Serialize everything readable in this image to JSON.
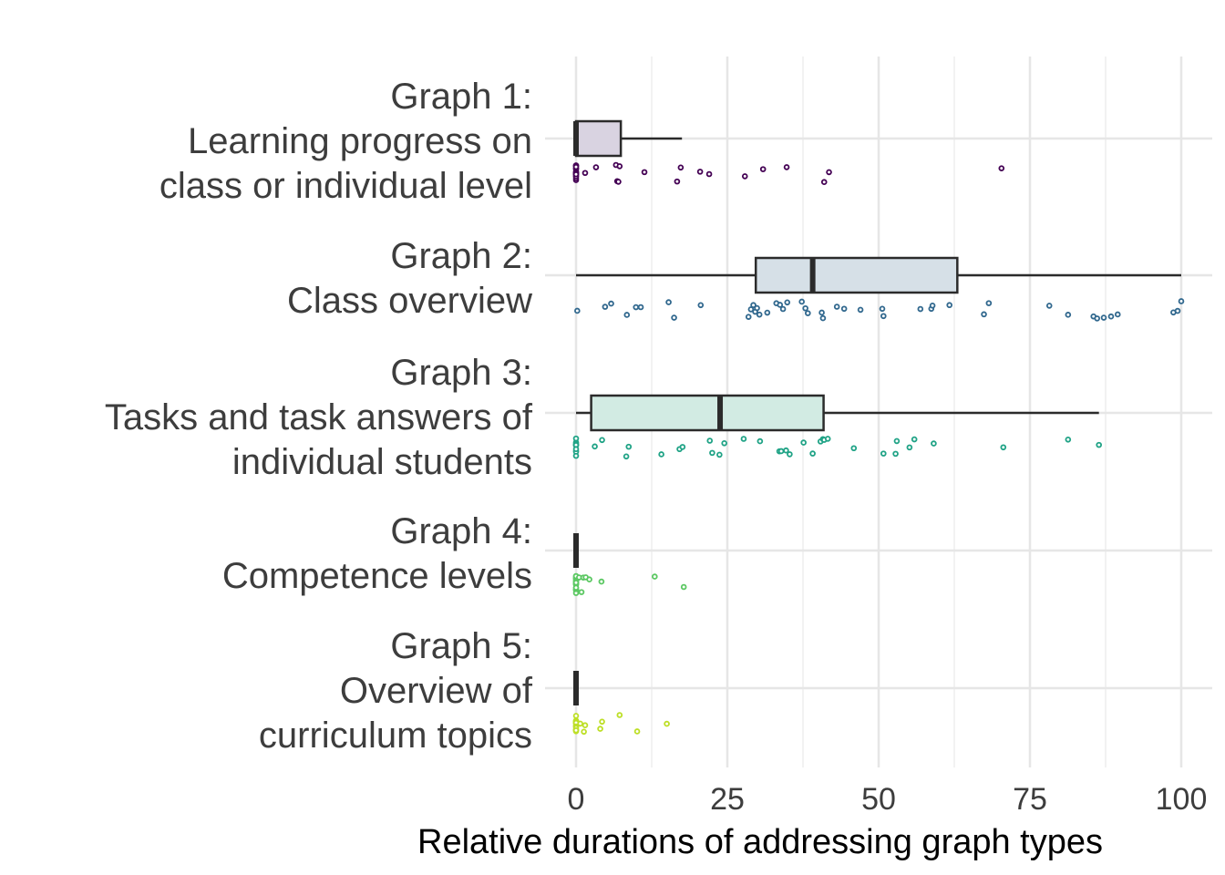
{
  "chart_data": {
    "type": "boxplot",
    "xlabel": "Relative durations of addressing graph types",
    "ylabel": "",
    "xlim": [
      0,
      100
    ],
    "xticks": [
      0,
      25,
      50,
      75,
      100
    ],
    "grid": true,
    "legend": "none",
    "categories": [
      {
        "label_lines": [
          "Graph 1:",
          "Learning progress on",
          "class or individual level"
        ],
        "color": "#440154",
        "fill": "#d9d3e1",
        "box": {
          "min": 0,
          "q1": 0,
          "median": 0,
          "q3": 7.4,
          "max": 17.5
        },
        "points": [
          0,
          0,
          0,
          0,
          0,
          0,
          0,
          0,
          0,
          0,
          0,
          0,
          0,
          0,
          0,
          0,
          0,
          0,
          0,
          1.5,
          3.3,
          6.6,
          6.8,
          7.0,
          7.2,
          11.3,
          16.7,
          17.3,
          20.5,
          22.0,
          27.9,
          30.9,
          34.8,
          41.0,
          41.8,
          70.3
        ]
      },
      {
        "label_lines": [
          "Graph 2:",
          "Class overview"
        ],
        "color": "#31688e",
        "fill": "#d6e0e7",
        "box": {
          "min": 0,
          "q1": 29.7,
          "median": 39.1,
          "q3": 63.0,
          "max": 100
        },
        "points": [
          0.2,
          4.8,
          5.8,
          8.4,
          9.9,
          10.7,
          15.3,
          16.2,
          20.6,
          28.5,
          28.9,
          29.3,
          29.6,
          29.9,
          30.3,
          31.6,
          33.1,
          33.7,
          34.2,
          34.9,
          37.3,
          37.9,
          38.3,
          40.6,
          40.8,
          43.1,
          44.3,
          47.0,
          50.6,
          50.8,
          56.9,
          58.7,
          58.9,
          61.7,
          67.4,
          68.2,
          78.2,
          81.3,
          85.5,
          86.1,
          87.2,
          88.4,
          89.5,
          98.7,
          99.4,
          100
        ]
      },
      {
        "label_lines": [
          "Graph 3:",
          "Tasks and task answers of",
          "individual students"
        ],
        "color": "#20a386",
        "fill": "#d2ebe3",
        "box": {
          "min": 0,
          "q1": 2.5,
          "median": 23.8,
          "q3": 40.9,
          "max": 86.4
        },
        "points": [
          0,
          0,
          0,
          0,
          0,
          0,
          0,
          0,
          0,
          0,
          0,
          3.1,
          4.3,
          8.3,
          8.7,
          14.1,
          17.1,
          17.6,
          22.1,
          22.5,
          23.7,
          24.5,
          27.7,
          30.4,
          33.6,
          33.9,
          34.7,
          35.3,
          37.6,
          39.1,
          40.4,
          40.8,
          41.0,
          41.6,
          45.9,
          50.8,
          52.8,
          53.0,
          55.1,
          55.9,
          59.1,
          70.6,
          81.3,
          86.4
        ]
      },
      {
        "label_lines": [
          "Graph 4:",
          "Competence levels"
        ],
        "color": "#5cc863",
        "fill": "#dff2dc",
        "box": {
          "min": 0,
          "q1": 0,
          "median": 0,
          "q3": 0,
          "max": 0
        },
        "points": [
          0,
          0,
          0,
          0,
          0,
          0,
          0,
          0,
          0,
          0,
          0,
          0,
          0,
          0,
          0,
          0,
          0,
          0,
          0,
          0,
          0,
          0,
          0.5,
          0.9,
          1.2,
          1.6,
          2.2,
          4.2,
          13.0,
          17.8
        ]
      },
      {
        "label_lines": [
          "Graph 5:",
          "Overview of",
          "curriculum topics"
        ],
        "color": "#bddf26",
        "fill": "#f2f8d4",
        "box": {
          "min": 0,
          "q1": 0,
          "median": 0,
          "q3": 0,
          "max": 0
        },
        "points": [
          0,
          0,
          0,
          0,
          0,
          0,
          0,
          0,
          0,
          0,
          0,
          0,
          0,
          0,
          0,
          0,
          0,
          0,
          0,
          0,
          0.7,
          1.3,
          1.5,
          4.0,
          4.3,
          7.2,
          10.1,
          15.0
        ]
      }
    ]
  }
}
